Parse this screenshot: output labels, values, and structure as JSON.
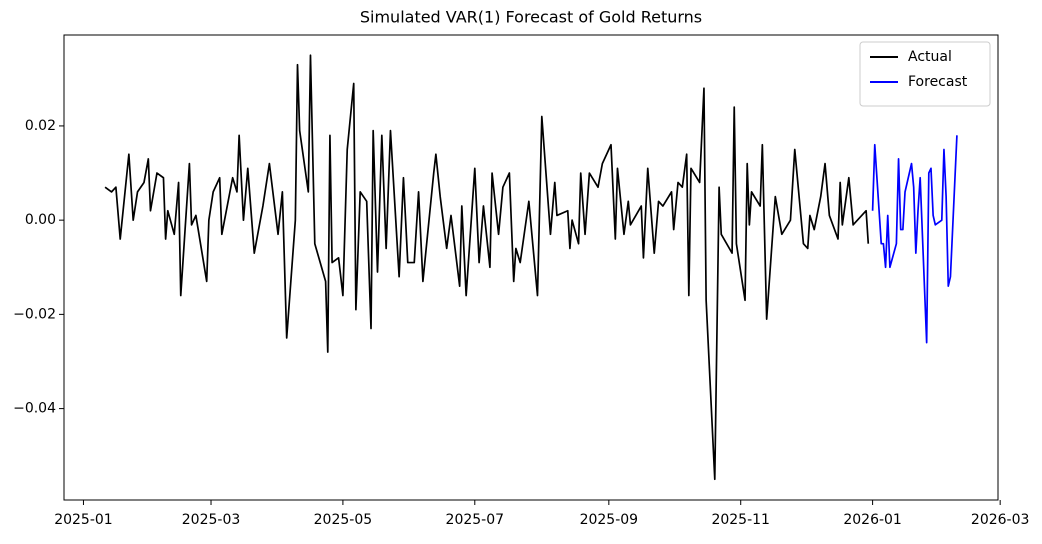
{
  "chart_data": {
    "type": "line",
    "title": "Simulated VAR(1) Forecast of Gold Returns",
    "xlim": [
      "2024-12-23",
      "2026-02-28"
    ],
    "xticks": [
      {
        "value": "2025-01-01",
        "label": "2025-01"
      },
      {
        "value": "2025-03-01",
        "label": "2025-03"
      },
      {
        "value": "2025-05-01",
        "label": "2025-05"
      },
      {
        "value": "2025-07-01",
        "label": "2025-07"
      },
      {
        "value": "2025-09-01",
        "label": "2025-09"
      },
      {
        "value": "2025-11-01",
        "label": "2025-11"
      },
      {
        "value": "2026-01-01",
        "label": "2026-01"
      },
      {
        "value": "2026-03-01",
        "label": "2026-03"
      }
    ],
    "ylim": [
      -0.0594,
      0.0393
    ],
    "yticks": [
      {
        "value": -0.04,
        "label": "−0.04"
      },
      {
        "value": -0.02,
        "label": "−0.02"
      },
      {
        "value": 0,
        "label": "0.00"
      },
      {
        "value": 0.02,
        "label": "0.02"
      }
    ],
    "legend": "upper right",
    "series": [
      {
        "name": "Actual",
        "color": "#000000",
        "x": [
          "2025-01-11",
          "2025-01-14",
          "2025-01-16",
          "2025-01-18",
          "2025-01-22",
          "2025-01-24",
          "2025-01-26",
          "2025-01-29",
          "2025-01-31",
          "2025-02-01",
          "2025-02-04",
          "2025-02-07",
          "2025-02-08",
          "2025-02-09",
          "2025-02-12",
          "2025-02-14",
          "2025-02-15",
          "2025-02-19",
          "2025-02-20",
          "2025-02-22",
          "2025-02-27",
          "2025-02-28",
          "2025-03-02",
          "2025-03-05",
          "2025-03-06",
          "2025-03-11",
          "2025-03-13",
          "2025-03-14",
          "2025-03-16",
          "2025-03-18",
          "2025-03-21",
          "2025-03-25",
          "2025-03-28",
          "2025-04-01",
          "2025-04-03",
          "2025-04-05",
          "2025-04-09",
          "2025-04-10",
          "2025-04-11",
          "2025-04-15",
          "2025-04-16",
          "2025-04-18",
          "2025-04-23",
          "2025-04-24",
          "2025-04-25",
          "2025-04-26",
          "2025-04-29",
          "2025-05-01",
          "2025-05-03",
          "2025-05-06",
          "2025-05-07",
          "2025-05-09",
          "2025-05-12",
          "2025-05-14",
          "2025-05-15",
          "2025-05-17",
          "2025-05-19",
          "2025-05-21",
          "2025-05-23",
          "2025-05-27",
          "2025-05-29",
          "2025-05-31",
          "2025-06-03",
          "2025-06-05",
          "2025-06-07",
          "2025-06-12",
          "2025-06-13",
          "2025-06-15",
          "2025-06-18",
          "2025-06-20",
          "2025-06-24",
          "2025-06-25",
          "2025-06-27",
          "2025-07-01",
          "2025-07-03",
          "2025-07-05",
          "2025-07-08",
          "2025-07-09",
          "2025-07-12",
          "2025-07-14",
          "2025-07-17",
          "2025-07-19",
          "2025-07-20",
          "2025-07-22",
          "2025-07-26",
          "2025-07-30",
          "2025-08-01",
          "2025-08-05",
          "2025-08-07",
          "2025-08-08",
          "2025-08-13",
          "2025-08-14",
          "2025-08-15",
          "2025-08-18",
          "2025-08-19",
          "2025-08-21",
          "2025-08-23",
          "2025-08-27",
          "2025-08-29",
          "2025-09-02",
          "2025-09-04",
          "2025-09-05",
          "2025-09-08",
          "2025-09-10",
          "2025-09-11",
          "2025-09-16",
          "2025-09-17",
          "2025-09-19",
          "2025-09-22",
          "2025-09-24",
          "2025-09-26",
          "2025-09-30",
          "2025-10-01",
          "2025-10-03",
          "2025-10-05",
          "2025-10-07",
          "2025-10-08",
          "2025-10-09",
          "2025-10-13",
          "2025-10-15",
          "2025-10-16",
          "2025-10-20",
          "2025-10-22",
          "2025-10-23",
          "2025-10-28",
          "2025-10-29",
          "2025-10-30",
          "2025-11-03",
          "2025-11-04",
          "2025-11-05",
          "2025-11-06",
          "2025-11-10",
          "2025-11-11",
          "2025-11-13",
          "2025-11-17",
          "2025-11-20",
          "2025-11-24",
          "2025-11-26",
          "2025-11-28",
          "2025-11-30",
          "2025-12-02",
          "2025-12-03",
          "2025-12-05",
          "2025-12-08",
          "2025-12-10",
          "2025-12-12",
          "2025-12-16",
          "2025-12-17",
          "2025-12-18",
          "2025-12-21",
          "2025-12-23",
          "2025-12-29",
          "2025-12-30"
        ],
        "values": [
          0.007,
          0.006,
          0.007,
          -0.004,
          0.014,
          0.0,
          0.006,
          0.008,
          0.013,
          0.002,
          0.01,
          0.009,
          -0.004,
          0.002,
          -0.003,
          0.008,
          -0.016,
          0.012,
          -0.001,
          0.001,
          -0.013,
          0.0,
          0.006,
          0.009,
          -0.003,
          0.009,
          0.006,
          0.018,
          0.0,
          0.011,
          -0.007,
          0.003,
          0.012,
          -0.003,
          0.006,
          -0.025,
          0.0,
          0.033,
          0.019,
          0.006,
          0.035,
          -0.005,
          -0.013,
          -0.028,
          0.018,
          -0.009,
          -0.008,
          -0.016,
          0.015,
          0.029,
          -0.019,
          0.006,
          0.004,
          -0.023,
          0.019,
          -0.011,
          0.018,
          -0.006,
          0.019,
          -0.012,
          0.009,
          -0.009,
          -0.009,
          0.006,
          -0.013,
          0.01,
          0.014,
          0.005,
          -0.006,
          0.001,
          -0.014,
          0.003,
          -0.016,
          0.011,
          -0.009,
          0.003,
          -0.01,
          0.01,
          -0.003,
          0.007,
          0.01,
          -0.013,
          -0.006,
          -0.009,
          0.004,
          -0.016,
          0.022,
          -0.003,
          0.008,
          0.001,
          0.002,
          -0.006,
          0.0,
          -0.005,
          0.01,
          -0.003,
          0.01,
          0.007,
          0.012,
          0.016,
          -0.004,
          0.011,
          -0.003,
          0.004,
          -0.001,
          0.003,
          -0.008,
          0.011,
          -0.007,
          0.004,
          0.003,
          0.006,
          -0.002,
          0.008,
          0.007,
          0.014,
          -0.016,
          0.011,
          0.008,
          0.028,
          -0.017,
          -0.055,
          0.007,
          -0.003,
          -0.007,
          0.024,
          -0.005,
          -0.017,
          0.012,
          -0.001,
          0.006,
          0.003,
          0.016,
          -0.021,
          0.005,
          -0.003,
          0.0,
          0.015,
          0.005,
          -0.005,
          -0.006,
          0.001,
          -0.002,
          0.005,
          0.012,
          0.001,
          -0.004,
          0.008,
          -0.001,
          0.009,
          -0.001,
          0.002,
          -0.005
        ]
      },
      {
        "name": "Forecast",
        "color": "#0000ff",
        "x": [
          "2026-01-01",
          "2026-01-02",
          "2026-01-05",
          "2026-01-06",
          "2026-01-07",
          "2026-01-08",
          "2026-01-09",
          "2026-01-12",
          "2026-01-13",
          "2026-01-14",
          "2026-01-15",
          "2026-01-16",
          "2026-01-19",
          "2026-01-20",
          "2026-01-21",
          "2026-01-22",
          "2026-01-23",
          "2026-01-26",
          "2026-01-27",
          "2026-01-28",
          "2026-01-29",
          "2026-01-30",
          "2026-02-02",
          "2026-02-03",
          "2026-02-04",
          "2026-02-05",
          "2026-02-06",
          "2026-02-09"
        ],
        "values": [
          0.002,
          0.016,
          -0.005,
          -0.005,
          -0.01,
          0.001,
          -0.01,
          -0.005,
          0.013,
          -0.002,
          -0.002,
          0.006,
          0.012,
          0.007,
          -0.007,
          0.002,
          0.009,
          -0.026,
          0.01,
          0.011,
          0.001,
          -0.001,
          0.0,
          0.015,
          0.005,
          -0.014,
          -0.012,
          0.018
        ]
      }
    ]
  }
}
